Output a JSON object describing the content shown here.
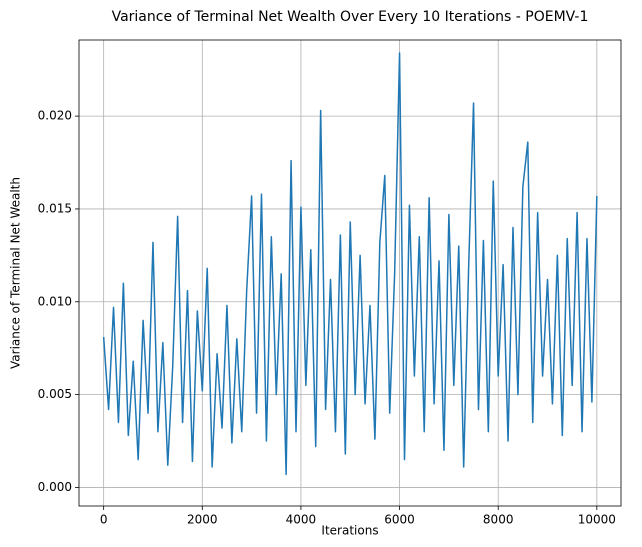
{
  "chart_data": {
    "type": "line",
    "title": "Variance of Terminal Net Wealth Over Every 10 Iterations - POEMV-1",
    "x_label": "Iterations",
    "y_label": "Variance of Terminal Net Wealth",
    "x": [
      0,
      100,
      200,
      300,
      400,
      500,
      600,
      700,
      800,
      900,
      1000,
      1100,
      1200,
      1300,
      1400,
      1500,
      1600,
      1700,
      1800,
      1900,
      2000,
      2100,
      2200,
      2300,
      2400,
      2500,
      2600,
      2700,
      2800,
      2900,
      3000,
      3100,
      3200,
      3300,
      3400,
      3500,
      3600,
      3700,
      3800,
      3900,
      4000,
      4100,
      4200,
      4300,
      4400,
      4500,
      4600,
      4700,
      4800,
      4900,
      5000,
      5100,
      5200,
      5300,
      5400,
      5500,
      5600,
      5700,
      5800,
      5900,
      6000,
      6100,
      6200,
      6300,
      6400,
      6500,
      6600,
      6700,
      6800,
      6900,
      7000,
      7100,
      7200,
      7300,
      7400,
      7500,
      7600,
      7700,
      7800,
      7900,
      8000,
      8100,
      8200,
      8300,
      8400,
      8500,
      8600,
      8700,
      8800,
      8900,
      9000,
      9100,
      9200,
      9300,
      9400,
      9500,
      9600,
      9700,
      9800,
      9900,
      10000
    ],
    "series": [
      {
        "name": "Variance",
        "color": "#1f77b4",
        "values": [
          0.0081,
          0.0042,
          0.0097,
          0.0035,
          0.011,
          0.0028,
          0.0068,
          0.0015,
          0.009,
          0.004,
          0.0132,
          0.003,
          0.0078,
          0.0012,
          0.0065,
          0.0146,
          0.0035,
          0.0106,
          0.0014,
          0.0095,
          0.0052,
          0.0118,
          0.0011,
          0.0072,
          0.0032,
          0.0098,
          0.0024,
          0.008,
          0.003,
          0.0106,
          0.0157,
          0.004,
          0.0158,
          0.0025,
          0.0135,
          0.005,
          0.0115,
          0.0007,
          0.0176,
          0.003,
          0.0151,
          0.0055,
          0.0128,
          0.0022,
          0.0203,
          0.0042,
          0.0112,
          0.003,
          0.0136,
          0.0018,
          0.0143,
          0.005,
          0.0125,
          0.0045,
          0.0098,
          0.0026,
          0.0132,
          0.0168,
          0.004,
          0.0115,
          0.0234,
          0.0015,
          0.0152,
          0.006,
          0.0135,
          0.003,
          0.0156,
          0.0045,
          0.0122,
          0.002,
          0.0147,
          0.0055,
          0.013,
          0.0011,
          0.0118,
          0.0207,
          0.0042,
          0.0133,
          0.003,
          0.0165,
          0.006,
          0.012,
          0.0025,
          0.014,
          0.005,
          0.0162,
          0.0186,
          0.0035,
          0.0148,
          0.006,
          0.0112,
          0.0045,
          0.0125,
          0.0028,
          0.0134,
          0.0055,
          0.0148,
          0.003,
          0.0134,
          0.0046,
          0.0157
        ]
      }
    ],
    "xlim": [
      -500,
      10490
    ],
    "ylim": [
      -0.001,
      0.0241
    ],
    "xticks": [
      0,
      2000,
      4000,
      6000,
      8000,
      10000
    ],
    "yticks": [
      {
        "value": 0,
        "label": "0.000"
      },
      0.005,
      {
        "value": 0.01,
        "label": "0.010"
      },
      0.015,
      {
        "value": 0.02,
        "label": "0.020"
      }
    ],
    "grid": true
  }
}
